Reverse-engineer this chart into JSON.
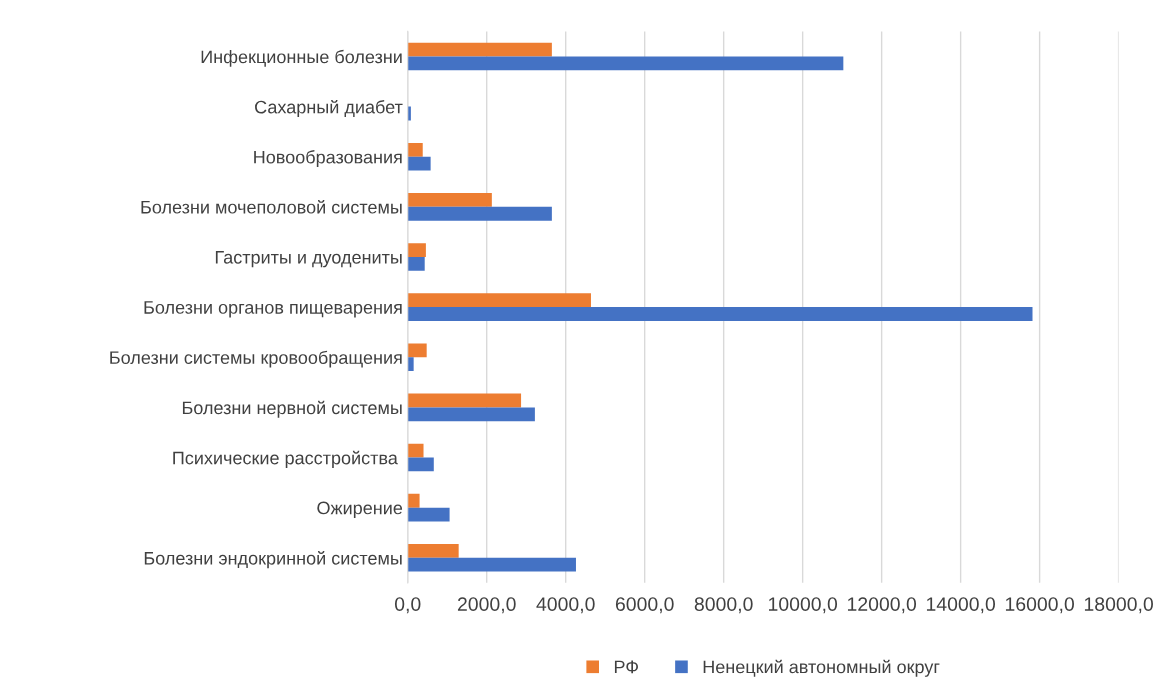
{
  "chart_data": {
    "type": "bar",
    "orientation": "horizontal",
    "categories": [
      "Инфекционные болезни",
      "Сахарный диабет",
      "Новообразования",
      "Болезни мочеполовой системы",
      "Гастриты и дуодениты",
      "Болезни органов пищеварения",
      "Болезни системы кровообращения",
      "Болезни нервной системы",
      "Психические расстройства ",
      "Ожирение",
      "Болезни эндокринной системы"
    ],
    "series": [
      {
        "name": "РФ",
        "color": "#ed7d31",
        "values": [
          3650,
          null,
          380,
          2130,
          460,
          4640,
          480,
          2870,
          400,
          300,
          1290
        ]
      },
      {
        "name": "Ненецкий автономный округ",
        "color": "#4472c4",
        "values": [
          11030,
          80,
          580,
          3650,
          430,
          15820,
          150,
          3220,
          660,
          1060,
          4260
        ]
      }
    ],
    "xlim": [
      0,
      18000
    ],
    "xticks": [
      {
        "value": 0,
        "label": "0,0"
      },
      {
        "value": 2000,
        "label": "2000,0"
      },
      {
        "value": 4000,
        "label": "4000,0"
      },
      {
        "value": 6000,
        "label": "6000,0"
      },
      {
        "value": 8000,
        "label": "8000,0"
      },
      {
        "value": 10000,
        "label": "10000,0"
      },
      {
        "value": 12000,
        "label": "12000,0"
      },
      {
        "value": 14000,
        "label": "14000,0"
      },
      {
        "value": 16000,
        "label": "16000,0"
      },
      {
        "value": 18000,
        "label": "18000,0"
      }
    ],
    "grid": "x",
    "legend": "bottom"
  }
}
